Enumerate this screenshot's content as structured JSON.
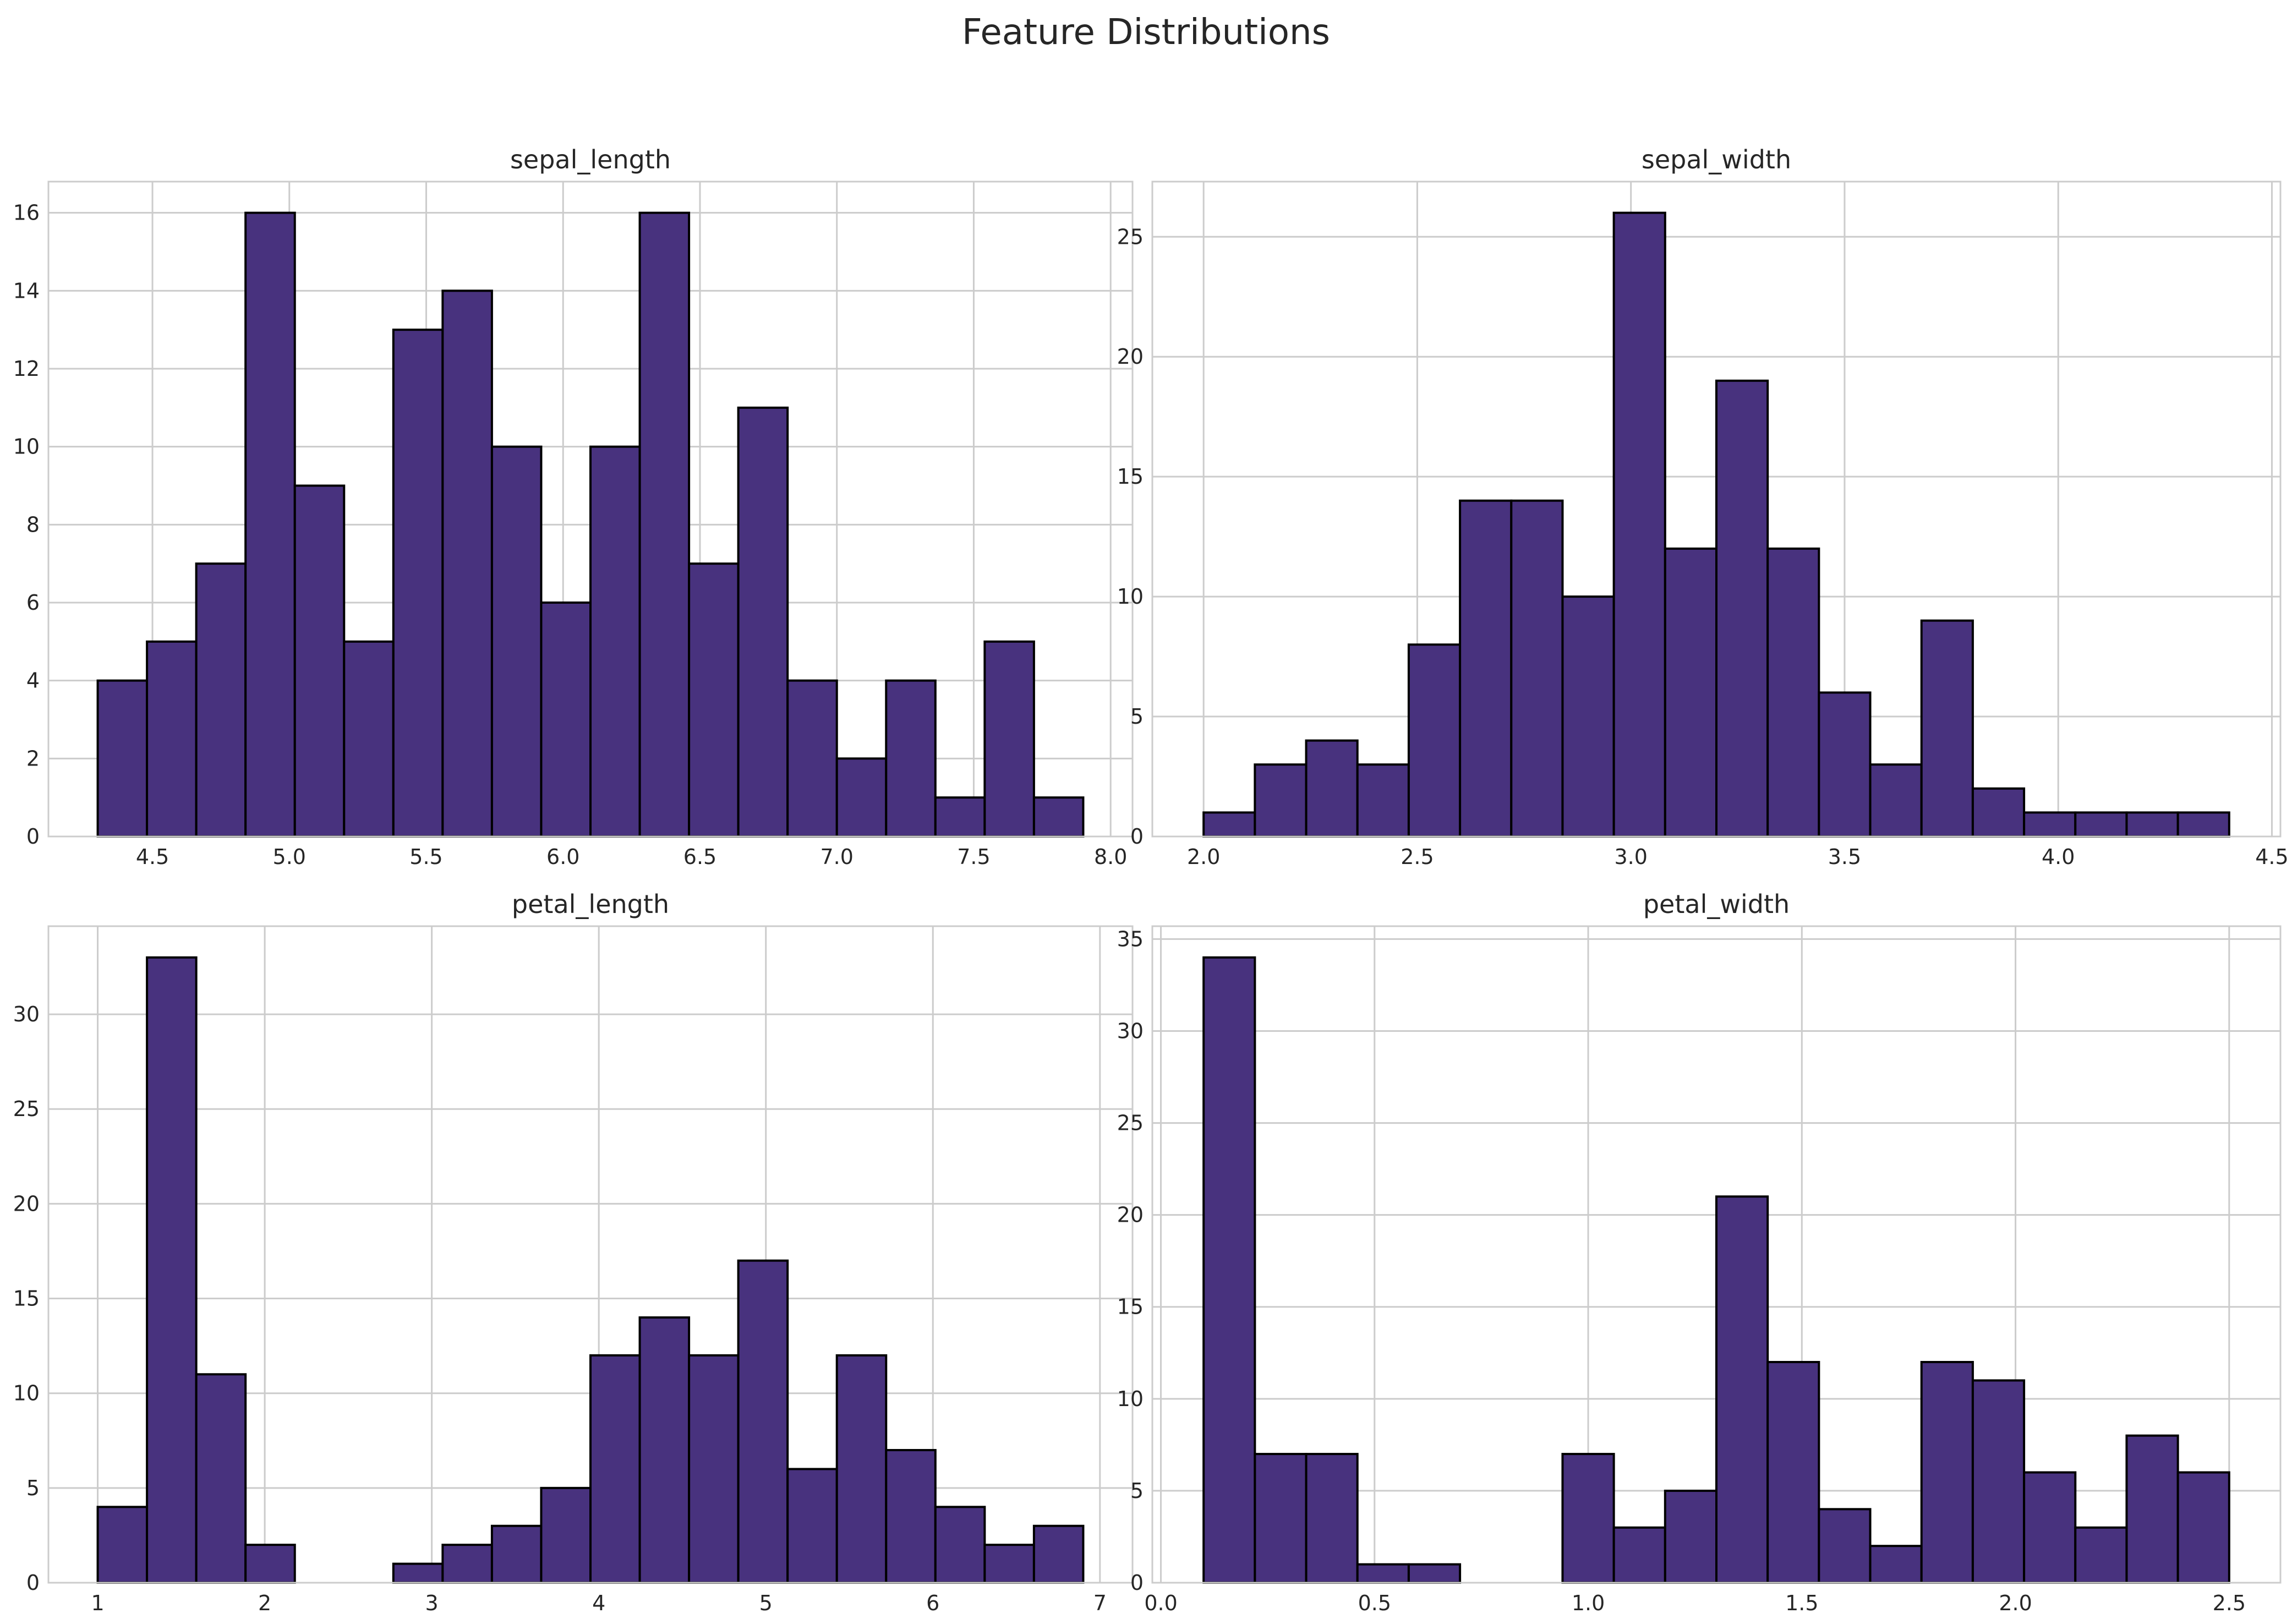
{
  "figure": {
    "title": "Feature Distributions"
  },
  "colors": {
    "bar_fill": "#48327e",
    "bar_edge": "#000000",
    "grid": "#cccccc",
    "text": "#262626"
  },
  "chart_data": [
    {
      "type": "bar",
      "title": "sepal_length",
      "xlabel": "",
      "ylabel": "",
      "grid": true,
      "xlim": [
        4.12,
        8.08
      ],
      "ylim": [
        0,
        16.8
      ],
      "xticks": [
        4.5,
        5.0,
        5.5,
        6.0,
        6.5,
        7.0,
        7.5,
        8.0
      ],
      "xtick_labels": [
        "4.5",
        "5.0",
        "5.5",
        "6.0",
        "6.5",
        "7.0",
        "7.5",
        "8.0"
      ],
      "yticks": [
        0,
        2,
        4,
        6,
        8,
        10,
        12,
        14,
        16
      ],
      "ytick_labels": [
        "0",
        "2",
        "4",
        "6",
        "8",
        "10",
        "12",
        "14",
        "16"
      ],
      "bin_start": 4.3,
      "bin_end": 7.9,
      "values": [
        4,
        5,
        7,
        16,
        9,
        5,
        13,
        14,
        10,
        6,
        10,
        16,
        7,
        11,
        4,
        2,
        4,
        1,
        5,
        1
      ]
    },
    {
      "type": "bar",
      "title": "sepal_width",
      "xlabel": "",
      "ylabel": "",
      "grid": true,
      "xlim": [
        1.88,
        4.52
      ],
      "ylim": [
        0,
        27.3
      ],
      "xticks": [
        2.0,
        2.5,
        3.0,
        3.5,
        4.0,
        4.5
      ],
      "xtick_labels": [
        "2.0",
        "2.5",
        "3.0",
        "3.5",
        "4.0",
        "4.5"
      ],
      "yticks": [
        0,
        5,
        10,
        15,
        20,
        25
      ],
      "ytick_labels": [
        "0",
        "5",
        "10",
        "15",
        "20",
        "25"
      ],
      "bin_start": 2.0,
      "bin_end": 4.4,
      "values": [
        1,
        3,
        4,
        3,
        8,
        14,
        14,
        10,
        26,
        12,
        19,
        12,
        6,
        3,
        9,
        2,
        1,
        1,
        1,
        1
      ]
    },
    {
      "type": "bar",
      "title": "petal_length",
      "xlabel": "",
      "ylabel": "",
      "grid": true,
      "xlim": [
        0.705,
        7.195
      ],
      "ylim": [
        0,
        34.65
      ],
      "xticks": [
        1,
        2,
        3,
        4,
        5,
        6,
        7
      ],
      "xtick_labels": [
        "1",
        "2",
        "3",
        "4",
        "5",
        "6",
        "7"
      ],
      "yticks": [
        0,
        5,
        10,
        15,
        20,
        25,
        30
      ],
      "ytick_labels": [
        "0",
        "5",
        "10",
        "15",
        "20",
        "25",
        "30"
      ],
      "bin_start": 1.0,
      "bin_end": 6.9,
      "values": [
        4,
        33,
        11,
        2,
        0,
        0,
        1,
        2,
        3,
        5,
        12,
        14,
        12,
        17,
        6,
        12,
        7,
        4,
        2,
        3
      ]
    },
    {
      "type": "bar",
      "title": "petal_width",
      "xlabel": "",
      "ylabel": "",
      "grid": true,
      "xlim": [
        -0.02,
        2.62
      ],
      "ylim": [
        0,
        35.7
      ],
      "xticks": [
        0.0,
        0.5,
        1.0,
        1.5,
        2.0,
        2.5
      ],
      "xtick_labels": [
        "0.0",
        "0.5",
        "1.0",
        "1.5",
        "2.0",
        "2.5"
      ],
      "yticks": [
        0,
        5,
        10,
        15,
        20,
        25,
        30,
        35
      ],
      "ytick_labels": [
        "0",
        "5",
        "10",
        "15",
        "20",
        "25",
        "30",
        "35"
      ],
      "bin_start": 0.1,
      "bin_end": 2.5,
      "values": [
        34,
        7,
        7,
        1,
        1,
        0,
        0,
        7,
        3,
        5,
        21,
        12,
        4,
        2,
        12,
        11,
        6,
        3,
        8,
        6
      ]
    }
  ]
}
